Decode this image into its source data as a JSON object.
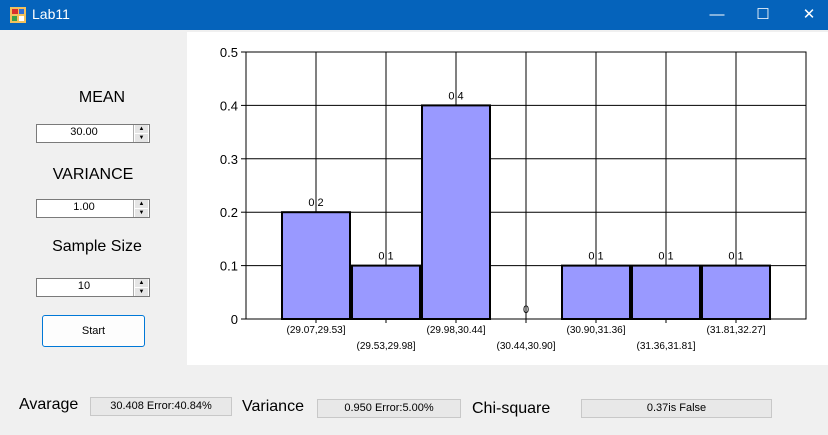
{
  "window": {
    "title": "Lab11",
    "minimize": "—",
    "maximize": "☐",
    "close": "✕"
  },
  "left_panel": {
    "mean_label": "MEAN",
    "mean_value": "30.00",
    "variance_label": "VARIANCE",
    "variance_value": "1.00",
    "sample_size_label": "Sample Size",
    "sample_size_value": "10",
    "start_label": "Start"
  },
  "bottom": {
    "average_label": "Avarage",
    "average_value": "30.408 Error:40.84%",
    "variance_label": "Variance",
    "variance_value": "0.950 Error:5.00%",
    "chi_label": "Chi-square",
    "chi_value": "0.37is False"
  },
  "chart_data": {
    "type": "bar",
    "title": "",
    "xlabel": "",
    "ylabel": "",
    "ylim": [
      0,
      0.5
    ],
    "yticks": [
      "0",
      "0.1",
      "0.2",
      "0.3",
      "0.4",
      "0.5"
    ],
    "yticks_values": [
      0,
      0.1,
      0.2,
      0.3,
      0.4,
      0.5
    ],
    "categories": [
      "(29.07,29.53]",
      "(29.53,29.98]",
      "(29.98,30.44]",
      "(30.44,30.90]",
      "(30.90,31.36]",
      "(31.36,31.81]",
      "(31.81,32.27]"
    ],
    "values": [
      0.2,
      0.1,
      0.4,
      0,
      0.1,
      0.1,
      0.1
    ],
    "value_labels": [
      "0.2",
      "0.1",
      "0.4",
      "0",
      "0.1",
      "0.1",
      "0.1"
    ],
    "grid": true,
    "bar_color": "#9999ff"
  }
}
